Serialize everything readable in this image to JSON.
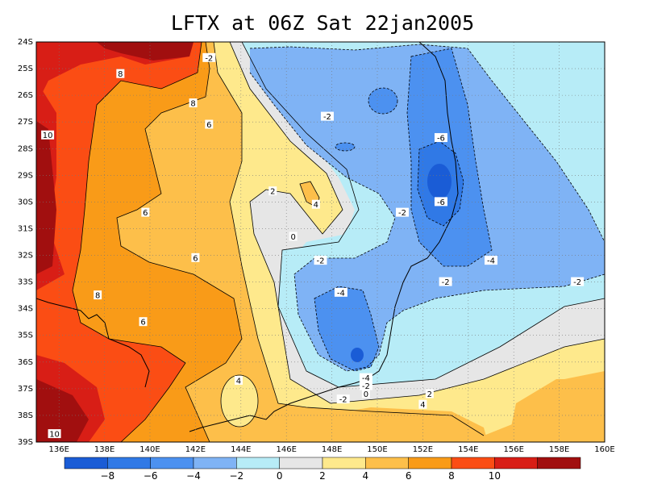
{
  "title": "LFTX at 06Z Sat 22jan2005",
  "map": {
    "lon_range": [
      135,
      160
    ],
    "lat_range": [
      -39,
      -24
    ],
    "lon_ticks": [
      "136E",
      "138E",
      "140E",
      "142E",
      "144E",
      "146E",
      "148E",
      "150E",
      "152E",
      "154E",
      "156E",
      "158E",
      "160E"
    ],
    "lat_ticks": [
      "24S",
      "25S",
      "26S",
      "27S",
      "28S",
      "29S",
      "30S",
      "31S",
      "32S",
      "33S",
      "34S",
      "35S",
      "36S",
      "37S",
      "38S",
      "39S"
    ],
    "grid": "dotted"
  },
  "contour_labels": [
    {
      "text": "-2",
      "lon": 142.6,
      "lat": -24.6
    },
    {
      "text": "8",
      "lon": 138.7,
      "lat": -25.2
    },
    {
      "text": "8",
      "lon": 141.9,
      "lat": -26.3
    },
    {
      "text": "6",
      "lon": 142.6,
      "lat": -27.1
    },
    {
      "text": "10",
      "lon": 135.5,
      "lat": -27.5
    },
    {
      "text": "-2",
      "lon": 147.8,
      "lat": -26.8
    },
    {
      "text": "-6",
      "lon": 152.8,
      "lat": -27.6
    },
    {
      "text": "-6",
      "lon": 152.8,
      "lat": -30.0
    },
    {
      "text": "2",
      "lon": 145.4,
      "lat": -29.6
    },
    {
      "text": "4",
      "lon": 147.3,
      "lat": -30.1
    },
    {
      "text": "-2",
      "lon": 151.1,
      "lat": -30.4
    },
    {
      "text": "6",
      "lon": 139.8,
      "lat": -30.4
    },
    {
      "text": "0",
      "lon": 146.3,
      "lat": -31.3
    },
    {
      "text": "-2",
      "lon": 147.5,
      "lat": -32.2
    },
    {
      "text": "6",
      "lon": 142.0,
      "lat": -32.1
    },
    {
      "text": "-4",
      "lon": 155.0,
      "lat": -32.2
    },
    {
      "text": "-2",
      "lon": 153.0,
      "lat": -33.0
    },
    {
      "text": "-2",
      "lon": 158.8,
      "lat": -33.0
    },
    {
      "text": "-4",
      "lon": 148.4,
      "lat": -33.4
    },
    {
      "text": "8",
      "lon": 137.7,
      "lat": -33.5
    },
    {
      "text": "6",
      "lon": 139.7,
      "lat": -34.5
    },
    {
      "text": "-4",
      "lon": 149.5,
      "lat": -36.6
    },
    {
      "text": "-2",
      "lon": 149.5,
      "lat": -36.9
    },
    {
      "text": "0",
      "lon": 149.5,
      "lat": -37.2
    },
    {
      "text": "4",
      "lon": 143.9,
      "lat": -36.7
    },
    {
      "text": "2",
      "lon": 152.3,
      "lat": -37.2
    },
    {
      "text": "-2",
      "lon": 148.5,
      "lat": -37.4
    },
    {
      "text": "4",
      "lon": 152.0,
      "lat": -37.6
    },
    {
      "text": "10",
      "lon": 135.8,
      "lat": -38.7
    }
  ],
  "colorbar": {
    "labels": [
      "-8",
      "-6",
      "-4",
      "-2",
      "0",
      "2",
      "4",
      "6",
      "8",
      "10"
    ],
    "colors": [
      "#1a5cd6",
      "#3079e6",
      "#4c91f0",
      "#7fb3f5",
      "#b7ecf7",
      "#e6e6e6",
      "#fee98c",
      "#fdbf4a",
      "#f99b18",
      "#fb4d14",
      "#d81e16",
      "#a10f0f"
    ]
  },
  "legend_colors": {
    "c_m8": "#1a5cd6",
    "c_m6": "#3079e6",
    "c_m4": "#4c91f0",
    "c_m2": "#7fb3f5",
    "c_0": "#b7ecf7",
    "c_2": "#e6e6e6",
    "c_4": "#fee98c",
    "c_6": "#fdbf4a",
    "c_8": "#f99b18",
    "c_10": "#fb4d14",
    "c_12": "#d81e16",
    "c_14": "#a10f0f"
  }
}
